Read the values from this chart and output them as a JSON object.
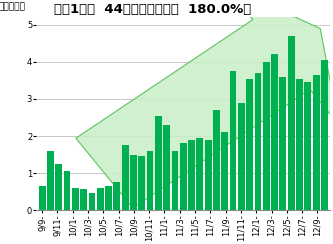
{
  "title": "直近1年間  44百万円（前年比  180.0%）",
  "ylabel": "（百万円）",
  "bar_values": [
    0.65,
    1.6,
    1.25,
    1.05,
    0.6,
    0.58,
    0.45,
    0.6,
    0.65,
    0.75,
    1.75,
    1.5,
    1.45,
    1.6,
    2.55,
    2.3,
    1.6,
    1.8,
    1.9,
    1.95,
    1.9,
    2.7,
    2.1,
    3.75,
    2.9,
    3.55,
    3.7,
    4.0,
    4.2,
    3.6,
    4.7,
    3.55,
    3.45,
    3.65,
    4.05
  ],
  "x_labels": [
    "9/9-",
    "9/11-",
    "10/1-",
    "10/3-",
    "10/5-",
    "10/7-",
    "10/9-",
    "10/11-",
    "11/1-",
    "11/3-",
    "11/5-",
    "11/7-",
    "11/9-",
    "11/11-",
    "12/1-",
    "12/3-",
    "12/5-",
    "12/7-",
    "12/9-"
  ],
  "bar_color": "#00b050",
  "background_color": "#ffffff",
  "grid_color": "#b0b0b0",
  "title_color": "#000000",
  "ylim": [
    0,
    5.2
  ],
  "yticks": [
    0,
    1,
    2,
    3,
    4,
    5
  ],
  "title_fontsize": 9.5,
  "ylabel_fontsize": 6.5,
  "tick_fontsize": 6.0,
  "arrow_face_color": "#c8eec8",
  "arrow_edge_color": "#44bb44"
}
